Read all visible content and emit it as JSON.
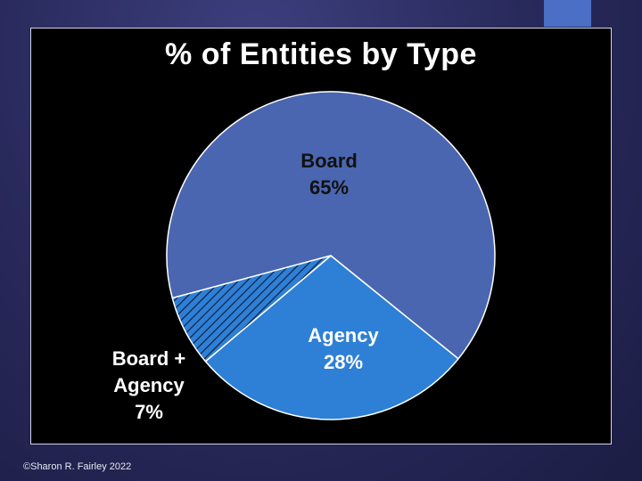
{
  "chart_data": {
    "type": "pie",
    "title": "% of Entities by Type",
    "slices": [
      {
        "label": "Board",
        "value": 65,
        "display": "65%",
        "color": "#4a66b0",
        "pattern": "solid"
      },
      {
        "label": "Agency",
        "value": 28,
        "display": "28%",
        "color": "#2e7fd6",
        "pattern": "solid"
      },
      {
        "label": "Board + Agency",
        "value": 7,
        "display": "7%",
        "color": "#2e7fd6",
        "pattern": "diagonal-hatch"
      }
    ],
    "legend": "none"
  },
  "labels": {
    "board_name": "Board",
    "board_pct": "65%",
    "agency_name": "Agency",
    "agency_pct": "28%",
    "both_name_line1": "Board +",
    "both_name_line2": "Agency",
    "both_pct": "7%"
  },
  "footer": {
    "copyright": "©Sharon R. Fairley 2022"
  }
}
